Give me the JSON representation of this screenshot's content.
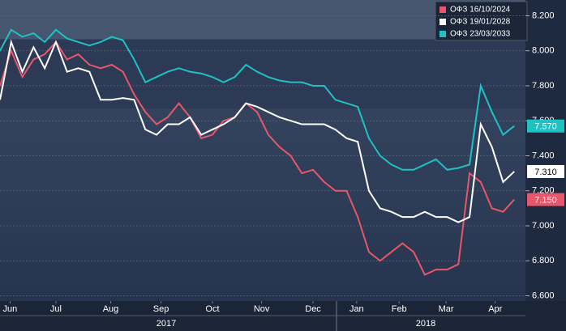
{
  "chart_data": {
    "type": "line",
    "x": [
      0,
      1,
      2,
      3,
      4,
      5,
      6,
      7,
      8,
      9,
      10,
      11,
      12,
      13,
      14,
      15,
      16,
      17,
      18,
      19,
      20,
      21,
      22,
      23,
      24,
      25,
      26,
      27,
      28,
      29,
      30,
      31,
      32,
      33,
      34,
      35,
      36,
      37,
      38,
      39,
      40,
      41,
      42,
      43,
      44,
      45,
      46
    ],
    "xlim": [
      0,
      47
    ],
    "xticks": [
      {
        "value": 0.9,
        "label": "Jun"
      },
      {
        "value": 5,
        "label": "Jul"
      },
      {
        "value": 9.9,
        "label": "Aug"
      },
      {
        "value": 14.4,
        "label": "Sep"
      },
      {
        "value": 19,
        "label": "Oct"
      },
      {
        "value": 23.4,
        "label": "Nov"
      },
      {
        "value": 28,
        "label": "Dec"
      },
      {
        "value": 31.9,
        "label": "Jan"
      },
      {
        "value": 35.7,
        "label": "Feb"
      },
      {
        "value": 39.9,
        "label": "Mar"
      },
      {
        "value": 44.3,
        "label": "Apr"
      }
    ],
    "year_labels": [
      "2017",
      "2018"
    ],
    "ylim": [
      6.57,
      8.29
    ],
    "yticks": [
      {
        "value": 6.6,
        "label": "6.600"
      },
      {
        "value": 6.8,
        "label": "6.800"
      },
      {
        "value": 7.0,
        "label": "7.000"
      },
      {
        "value": 7.2,
        "label": "7.200"
      },
      {
        "value": 7.4,
        "label": "7.400"
      },
      {
        "value": 7.6,
        "label": "7.600"
      },
      {
        "value": 7.8,
        "label": "7.800"
      },
      {
        "value": 8.0,
        "label": "8.000"
      },
      {
        "value": 8.2,
        "label": "8.200"
      }
    ],
    "grid": true,
    "legend": "top-right",
    "series": [
      {
        "name": "ОФЗ 16/10/2024",
        "color": "#e8566a",
        "values": [
          7.8,
          8.0,
          7.85,
          7.95,
          7.98,
          8.05,
          7.95,
          7.98,
          7.92,
          7.9,
          7.92,
          7.88,
          7.75,
          7.65,
          7.58,
          7.62,
          7.7,
          7.62,
          7.5,
          7.52,
          7.6,
          7.62,
          7.7,
          7.65,
          7.52,
          7.45,
          7.4,
          7.3,
          7.32,
          7.25,
          7.2,
          7.2,
          7.05,
          6.85,
          6.8,
          6.85,
          6.9,
          6.85,
          6.72,
          6.75,
          6.75,
          6.78,
          7.3,
          7.25,
          7.1,
          7.08,
          7.15
        ],
        "value_labels": [
          null,
          null,
          null,
          null,
          null,
          null,
          null,
          null,
          null,
          null,
          null,
          null,
          null,
          null,
          null,
          null,
          null,
          null,
          null,
          null,
          null,
          null,
          null,
          null,
          null,
          null,
          null,
          null,
          null,
          null,
          null,
          null,
          null,
          null,
          null,
          null,
          null,
          null,
          null,
          null,
          null,
          null,
          null,
          null,
          null,
          null,
          "7.150"
        ]
      },
      {
        "name": "ОФЗ 19/01/2028",
        "color": "#ffffff",
        "values": [
          7.72,
          8.05,
          7.88,
          8.02,
          7.9,
          8.05,
          7.88,
          7.9,
          7.88,
          7.72,
          7.72,
          7.73,
          7.72,
          7.55,
          7.52,
          7.58,
          7.58,
          7.62,
          7.52,
          7.55,
          7.58,
          7.62,
          7.7,
          7.68,
          7.65,
          7.62,
          7.6,
          7.58,
          7.58,
          7.58,
          7.55,
          7.5,
          7.48,
          7.2,
          7.1,
          7.08,
          7.05,
          7.05,
          7.08,
          7.05,
          7.05,
          7.02,
          7.05,
          7.58,
          7.45,
          7.25,
          7.31
        ],
        "value_labels": [
          null,
          null,
          null,
          null,
          null,
          null,
          null,
          null,
          null,
          null,
          null,
          null,
          null,
          null,
          null,
          null,
          null,
          null,
          null,
          null,
          null,
          null,
          null,
          null,
          null,
          null,
          null,
          null,
          null,
          null,
          null,
          null,
          null,
          null,
          null,
          null,
          null,
          null,
          null,
          null,
          null,
          null,
          null,
          null,
          null,
          null,
          "7.310"
        ]
      },
      {
        "name": "ОФЗ 23/03/2033",
        "color": "#1fc1c3",
        "values": [
          8.0,
          8.12,
          8.08,
          8.1,
          8.05,
          8.12,
          8.07,
          8.05,
          8.03,
          8.05,
          8.08,
          8.06,
          7.95,
          7.82,
          7.85,
          7.88,
          7.9,
          7.88,
          7.87,
          7.85,
          7.82,
          7.85,
          7.92,
          7.88,
          7.85,
          7.83,
          7.82,
          7.82,
          7.8,
          7.8,
          7.72,
          7.7,
          7.68,
          7.5,
          7.4,
          7.35,
          7.32,
          7.32,
          7.35,
          7.38,
          7.32,
          7.33,
          7.35,
          7.8,
          7.65,
          7.52,
          7.57
        ],
        "value_labels": [
          null,
          null,
          null,
          null,
          null,
          null,
          null,
          null,
          null,
          null,
          null,
          null,
          null,
          null,
          null,
          null,
          null,
          null,
          null,
          null,
          null,
          null,
          null,
          null,
          null,
          null,
          null,
          null,
          null,
          null,
          null,
          null,
          null,
          null,
          null,
          null,
          null,
          null,
          null,
          null,
          null,
          null,
          null,
          null,
          null,
          null,
          "7.570"
        ]
      }
    ]
  }
}
